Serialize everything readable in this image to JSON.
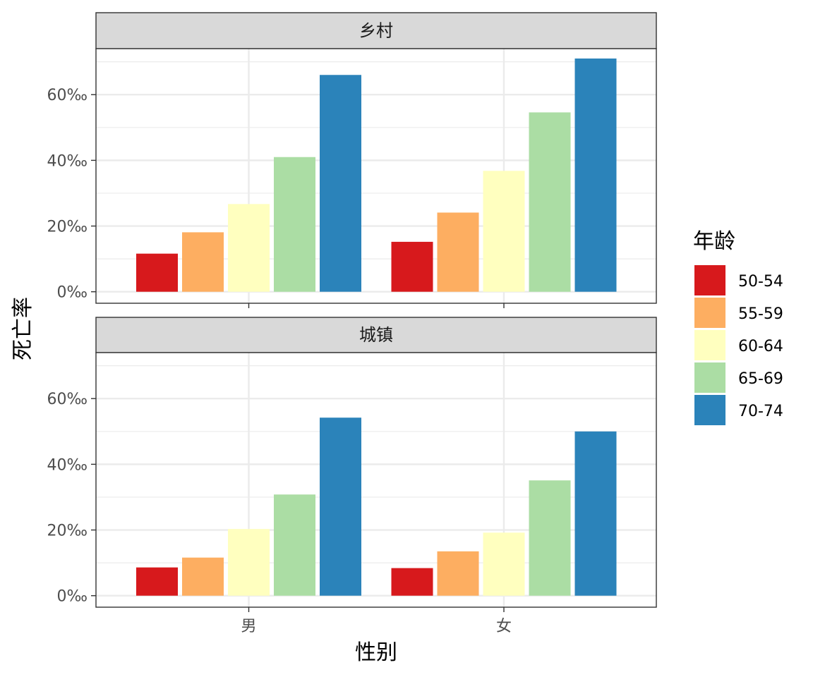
{
  "chart_data": {
    "type": "bar",
    "ylabel": "死亡率",
    "xlabel": "性别",
    "categories": [
      "男",
      "女"
    ],
    "ylim": [
      -3.5,
      74
    ],
    "yticks": [
      0,
      20,
      40,
      60
    ],
    "ytick_labels": [
      "0‰",
      "20‰",
      "40‰",
      "60‰"
    ],
    "legend": {
      "title": "年龄",
      "placement": "right"
    },
    "series": [
      {
        "name": "50-54",
        "color": "#d7191c"
      },
      {
        "name": "55-59",
        "color": "#fdae61"
      },
      {
        "name": "60-64",
        "color": "#ffffbf"
      },
      {
        "name": "65-69",
        "color": "#abdda4"
      },
      {
        "name": "70-74",
        "color": "#2b83ba"
      }
    ],
    "facets": [
      {
        "label": "乡村",
        "values": {
          "男": [
            11.6,
            18.1,
            26.7,
            41.0,
            66.0
          ],
          "女": [
            15.2,
            24.1,
            36.8,
            54.6,
            71.0
          ]
        }
      },
      {
        "label": "城镇",
        "values": {
          "男": [
            8.6,
            11.6,
            20.3,
            30.8,
            54.2
          ],
          "女": [
            8.4,
            13.5,
            19.2,
            35.1,
            50.0
          ]
        }
      }
    ],
    "grid": true
  }
}
